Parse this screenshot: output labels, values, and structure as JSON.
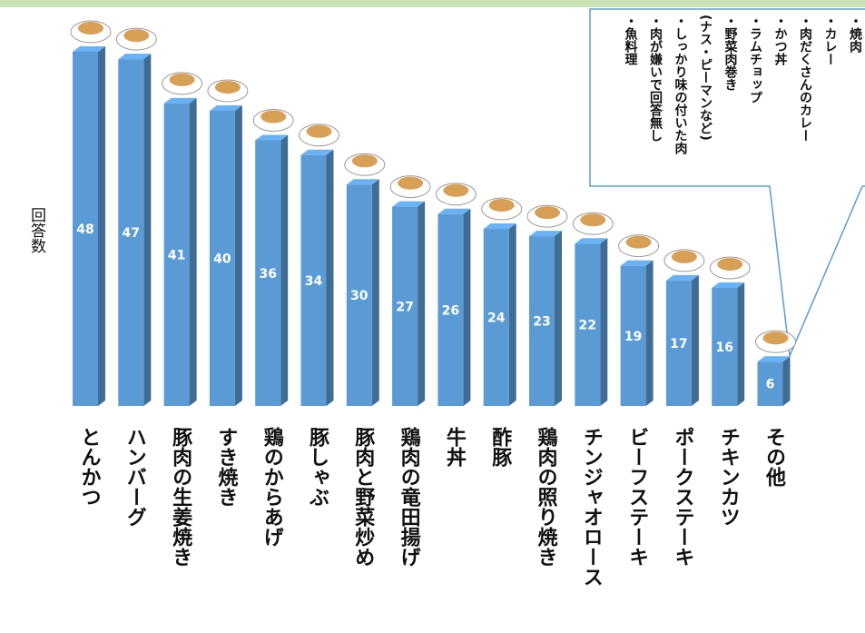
{
  "chart_data": {
    "type": "bar",
    "y_label": "回答数",
    "categories": [
      "とんかつ",
      "ハンバーグ",
      "豚肉の生姜焼き",
      "すき焼き",
      "鶏のからあげ",
      "豚しゃぶ",
      "豚肉と野菜炒め",
      "鶏肉の竜田揚げ",
      "牛丼",
      "酢豚",
      "鶏肉の照り焼き",
      "チンジャオロース",
      "ビーフステーキ",
      "ポークステーキ",
      "チキンカツ",
      "その他"
    ],
    "values": [
      48,
      47,
      41,
      40,
      36,
      34,
      30,
      27,
      26,
      24,
      23,
      22,
      19,
      17,
      16,
      6
    ],
    "color": "#5b9bd5",
    "annotation": [
      "・焼肉",
      "・カレー",
      "・肉だくさんのカレー",
      "・かつ丼",
      "・ラムチョップ",
      "・野菜肉巻き",
      "(ナス・ピーマンなど)",
      "・しっかり味の付いた肉",
      "・肉が嫌いで回答無し",
      "・魚料理"
    ]
  }
}
